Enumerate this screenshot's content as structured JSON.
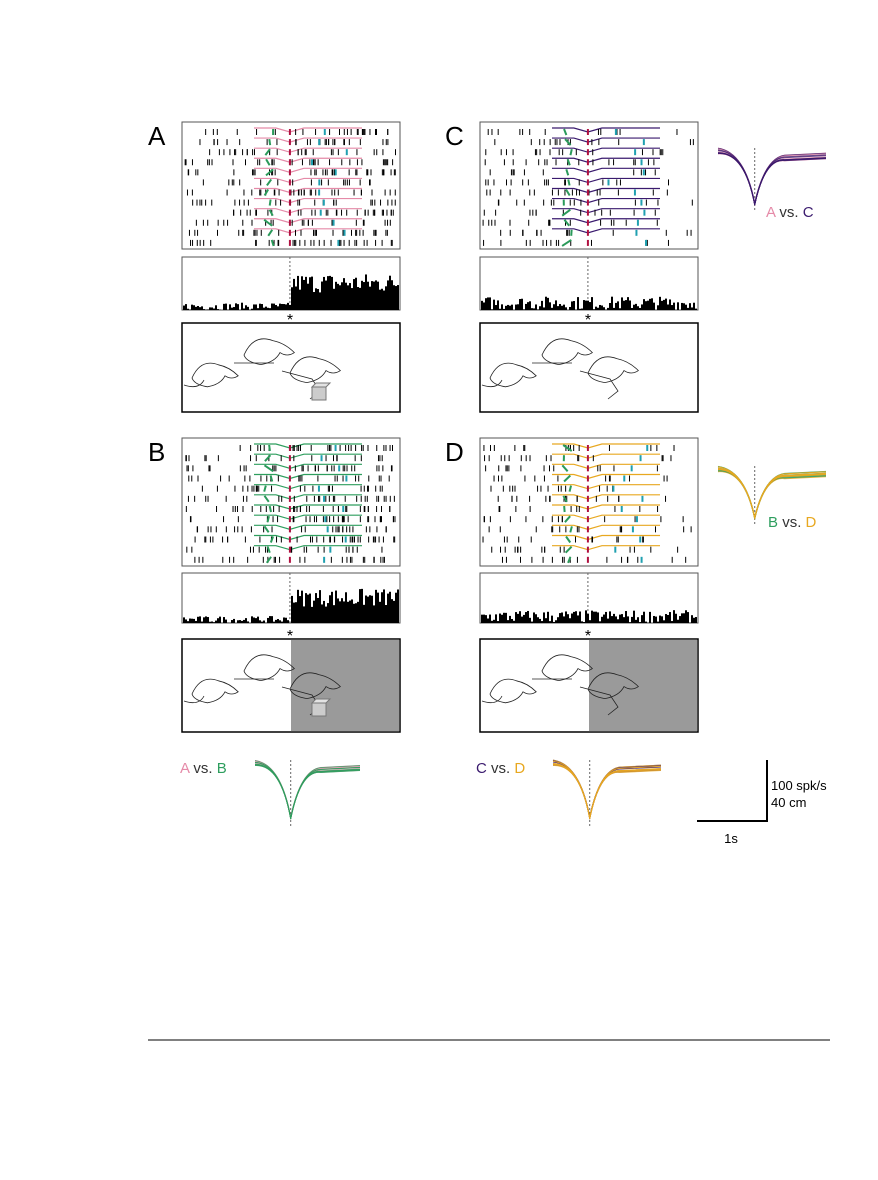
{
  "panels": [
    {
      "label": "A"
    },
    {
      "label": "B"
    },
    {
      "label": "C"
    },
    {
      "label": "D"
    }
  ],
  "marker": "*",
  "comparisons": [
    {
      "first": "A",
      "vs": "vs.",
      "second": "C"
    },
    {
      "first": "B",
      "vs": "vs.",
      "second": "D"
    },
    {
      "first": "A",
      "vs": "vs.",
      "second": "B"
    },
    {
      "first": "C",
      "vs": "vs.",
      "second": "D"
    }
  ],
  "scale_bar": {
    "rate": "100 spk/s",
    "distance": "40 cm",
    "time": "1s"
  }
}
